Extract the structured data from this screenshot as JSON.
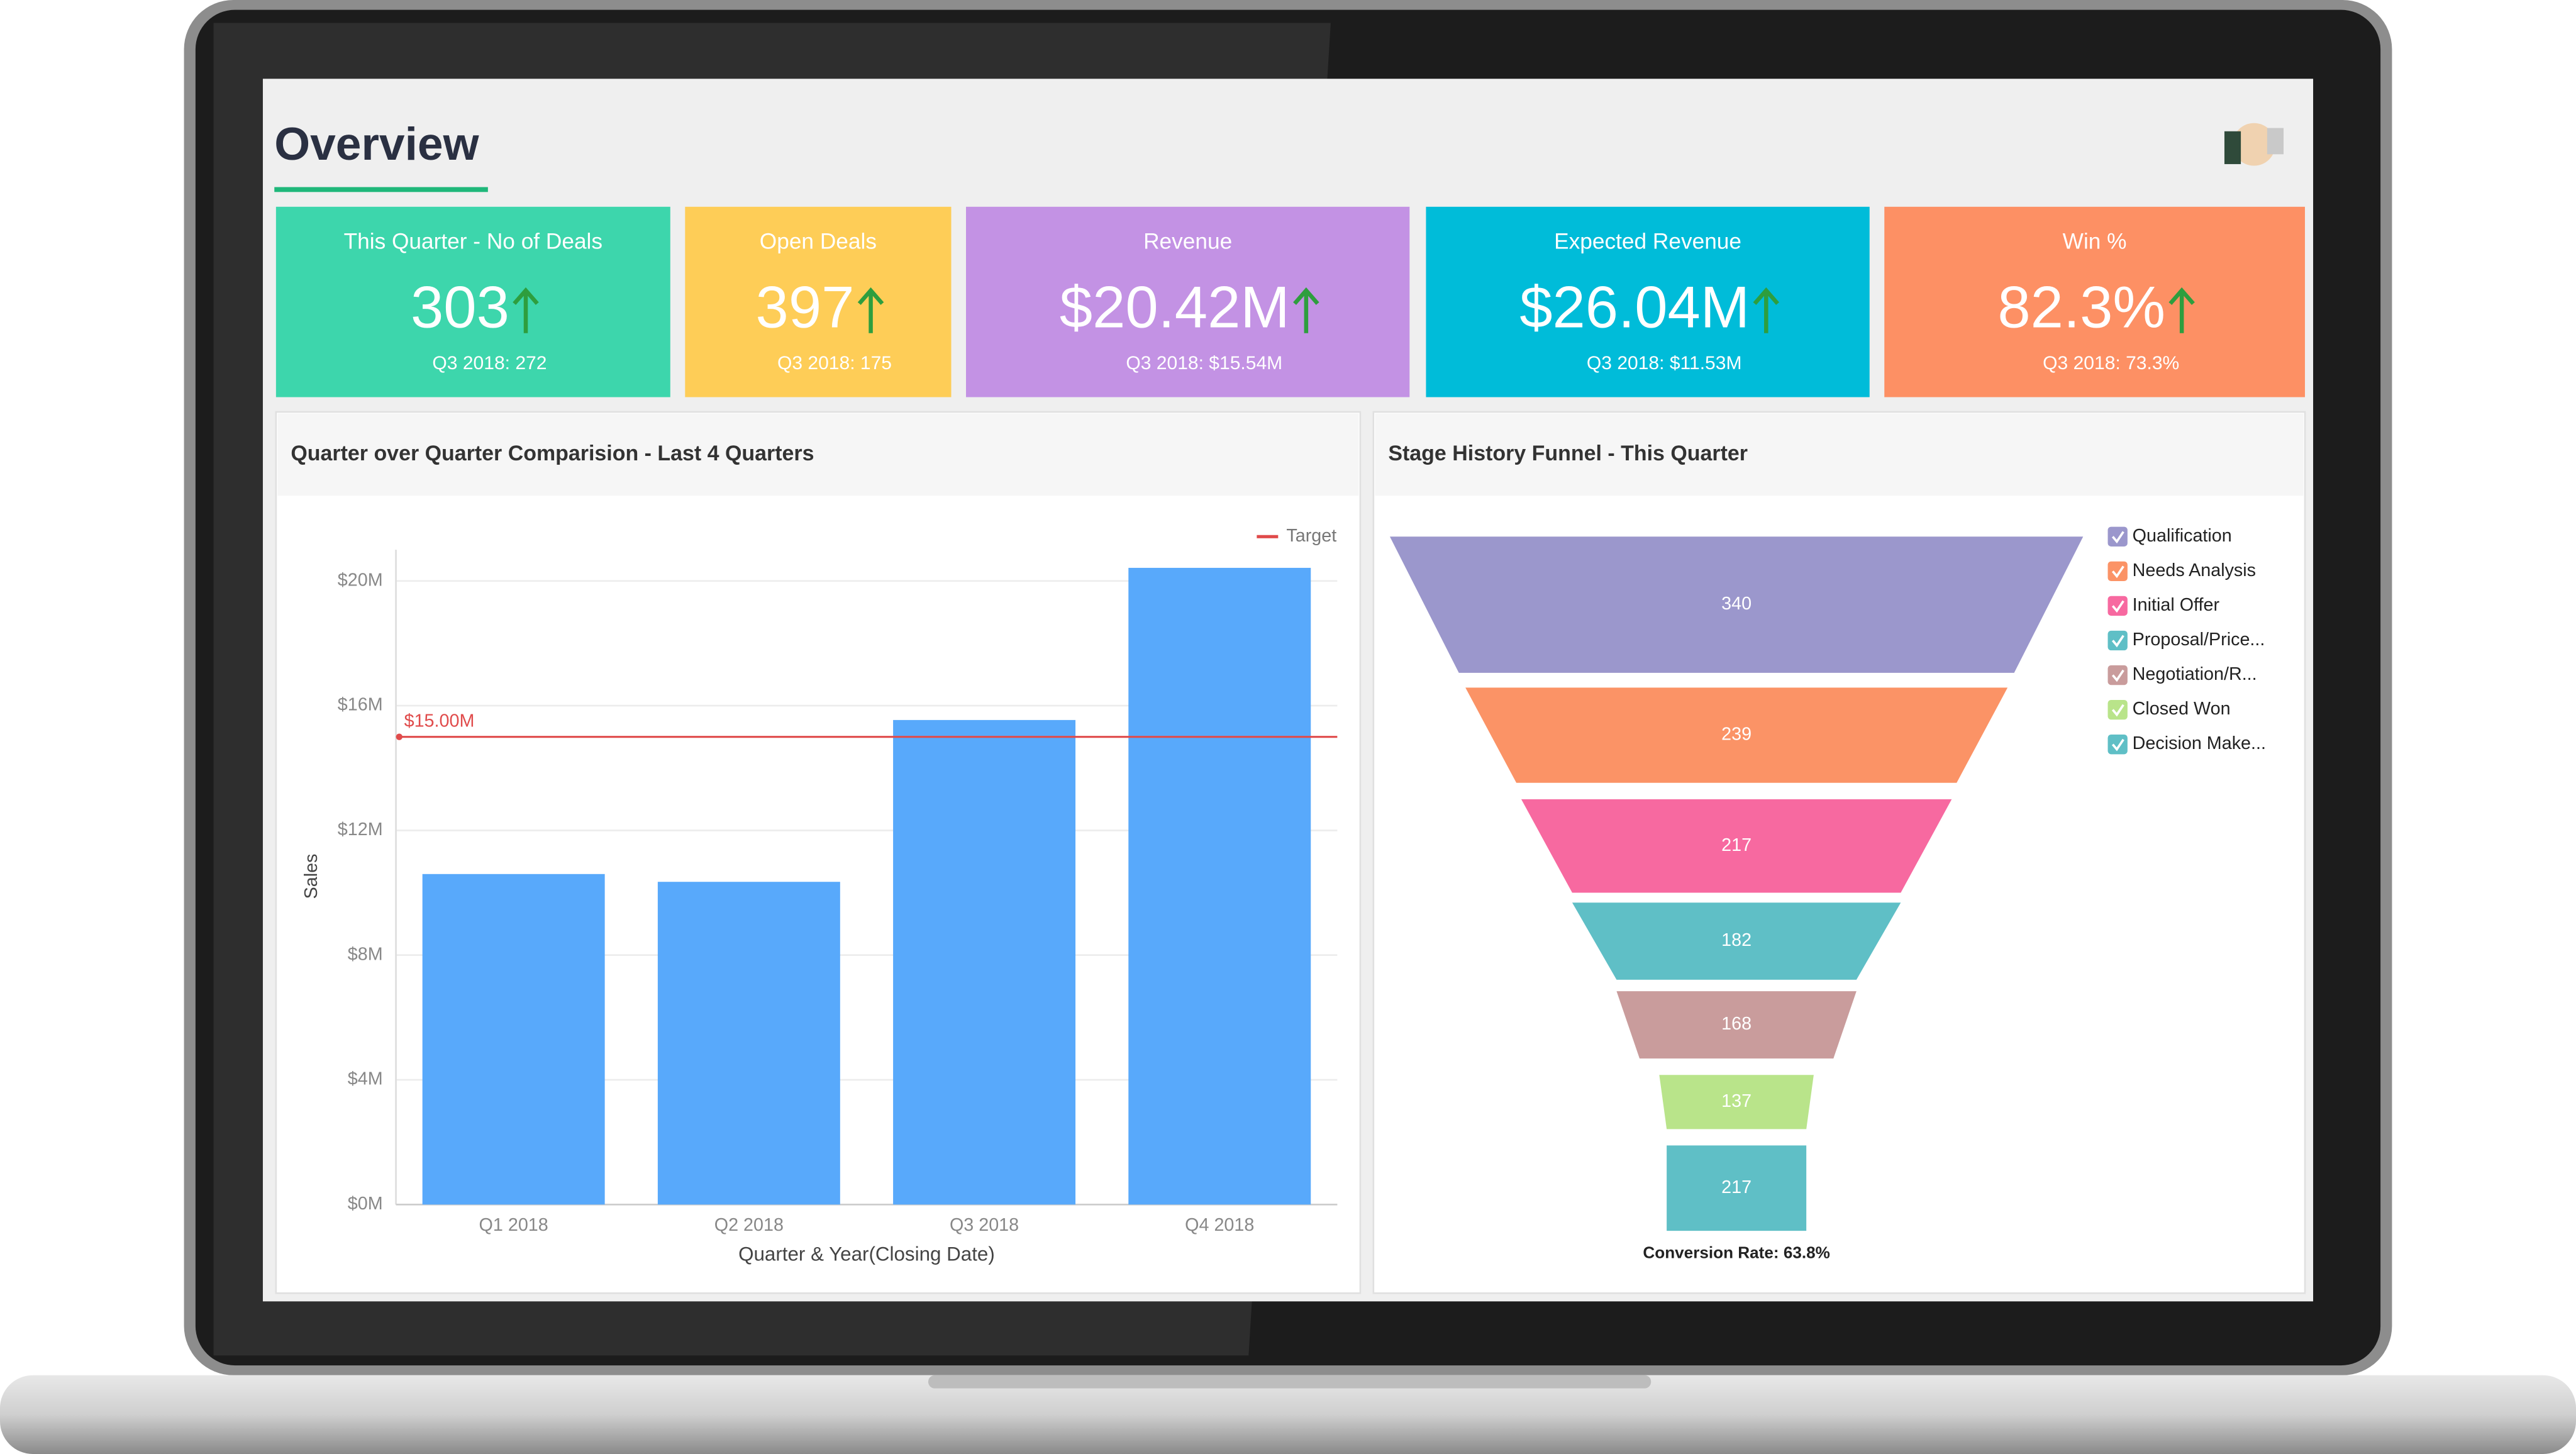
{
  "header": {
    "title": "Overview"
  },
  "kpis": [
    {
      "title": "This Quarter - No of Deals",
      "value": "303",
      "previous": "Q3 2018: 272",
      "color": "#3dd6ac"
    },
    {
      "title": "Open Deals",
      "value": "397",
      "previous": "Q3 2018: 175",
      "color": "#fecd57"
    },
    {
      "title": "Revenue",
      "value": "$20.42M",
      "previous": "Q3 2018: $15.54M",
      "color": "#c392e4"
    },
    {
      "title": "Expected Revenue",
      "value": "$26.04M",
      "previous": "Q3 2018: $11.53M",
      "color": "#00bcd9"
    },
    {
      "title": "Win %",
      "value": "82.3%",
      "previous": "Q3 2018: 73.3%",
      "color": "#fd9064"
    }
  ],
  "chart_data": [
    {
      "type": "bar",
      "title": "Quarter over Quarter Comparision - Last 4 Quarters",
      "x_label": "Quarter & Year(Closing Date)",
      "y_label": "Sales",
      "categories": [
        "Q1 2018",
        "Q2 2018",
        "Q3 2018",
        "Q4 2018"
      ],
      "values": [
        10.6,
        10.35,
        15.54,
        20.42
      ],
      "color": "#58a9fb",
      "ylim": [
        0,
        21
      ],
      "yticks": [
        {
          "value": 0,
          "label": "$0M"
        },
        {
          "value": 4,
          "label": "$4M"
        },
        {
          "value": 8,
          "label": "$8M"
        },
        {
          "value": 12,
          "label": "$12M"
        },
        {
          "value": 16,
          "label": "$16M"
        },
        {
          "value": 20,
          "label": "$20M"
        }
      ],
      "grid": true,
      "target": {
        "name": "Target",
        "value": 15,
        "value_label": "$15.00M",
        "color": "#e04b4b"
      }
    },
    {
      "type": "funnel",
      "title": "Stage History Funnel - This Quarter",
      "categories": [
        "Qualification",
        "Needs Analysis",
        "Initial Offer",
        "Proposal/Price...",
        "Negotiation/R...",
        "Closed Won",
        "Decision Make..."
      ],
      "values": [
        340,
        239,
        217,
        182,
        168,
        137,
        217
      ],
      "colors": [
        "#9b97cc",
        "#fb9366",
        "#f769a0",
        "#5fbfc6",
        "#c99c9c",
        "#b9e48a",
        "#5fbfc6"
      ],
      "annotation": "Conversion Rate: 63.8%"
    }
  ]
}
